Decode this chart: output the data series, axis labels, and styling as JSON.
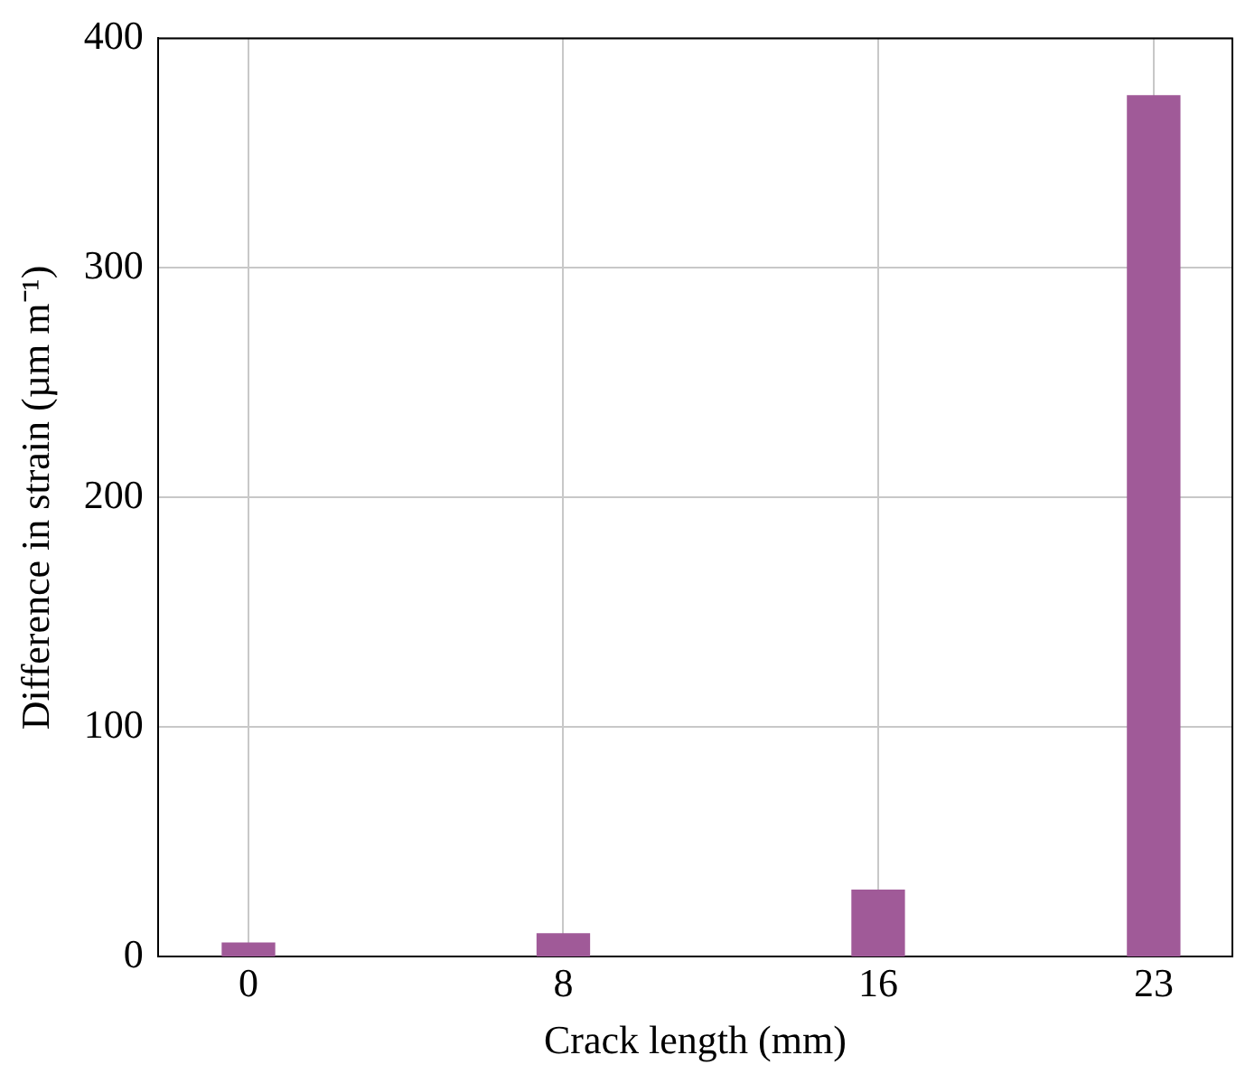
{
  "chart_data": {
    "type": "bar",
    "xlabel": "Crack length (mm)",
    "ylabel": "Difference in strain (µm m⁻¹)",
    "x": [
      0,
      8,
      16,
      23
    ],
    "values": [
      6,
      10,
      29,
      375
    ],
    "color": "#a05a98",
    "xlim": [
      -2.3,
      25
    ],
    "xticks": [
      0,
      8,
      16,
      23
    ],
    "ylim": [
      0,
      400
    ],
    "yticks": [
      0,
      100,
      200,
      300,
      400
    ],
    "grid": true,
    "legend": false
  }
}
